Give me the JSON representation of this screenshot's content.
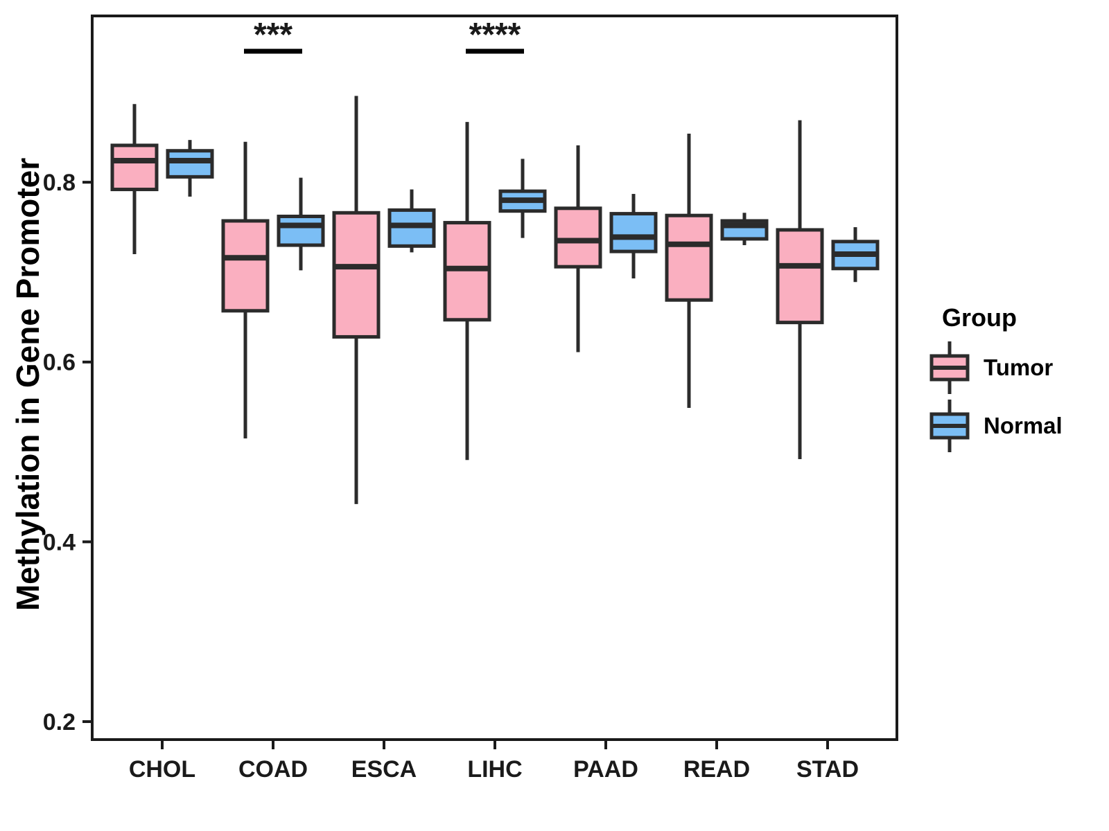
{
  "legend": {
    "title": "Group",
    "items": [
      {
        "label": "Tumor",
        "color": "#FAAFC0"
      },
      {
        "label": "Normal",
        "color": "#7BBEF5"
      }
    ]
  },
  "colors": {
    "tumor_fill": "#FAAFC0",
    "normal_fill": "#7BBEF5",
    "box_stroke": "#2b2b2b",
    "panel_border": "#1a1a1a",
    "tick_text": "#333333"
  },
  "chart_data": {
    "type": "boxplot",
    "title": "",
    "xlabel": "",
    "ylabel": "Methylation in Gene Promoter",
    "categories": [
      "CHOL",
      "COAD",
      "ESCA",
      "LIHC",
      "PAAD",
      "READ",
      "STAD"
    ],
    "groups": [
      "Tumor",
      "Normal"
    ],
    "ylim": [
      0.18,
      0.985
    ],
    "yticks": [
      {
        "label": "0.2",
        "value": 0.2
      },
      {
        "label": "0.4",
        "value": 0.4
      },
      {
        "label": "0.6",
        "value": 0.6
      },
      {
        "label": "0.8",
        "value": 0.8
      }
    ],
    "grid": false,
    "legend_position": "right",
    "series": [
      {
        "name": "Tumor",
        "color": "#FAAFC0",
        "boxes": [
          {
            "category": "CHOL",
            "whislo": 0.72,
            "q1": 0.792,
            "med": 0.824,
            "q3": 0.841,
            "whishi": 0.887
          },
          {
            "category": "COAD",
            "whislo": 0.515,
            "q1": 0.657,
            "med": 0.716,
            "q3": 0.757,
            "whishi": 0.845
          },
          {
            "category": "ESCA",
            "whislo": 0.442,
            "q1": 0.628,
            "med": 0.706,
            "q3": 0.766,
            "whishi": 0.896
          },
          {
            "category": "LIHC",
            "whislo": 0.491,
            "q1": 0.647,
            "med": 0.704,
            "q3": 0.755,
            "whishi": 0.867
          },
          {
            "category": "PAAD",
            "whislo": 0.611,
            "q1": 0.706,
            "med": 0.735,
            "q3": 0.771,
            "whishi": 0.841
          },
          {
            "category": "READ",
            "whislo": 0.549,
            "q1": 0.669,
            "med": 0.731,
            "q3": 0.763,
            "whishi": 0.854
          },
          {
            "category": "STAD",
            "whislo": 0.492,
            "q1": 0.644,
            "med": 0.707,
            "q3": 0.747,
            "whishi": 0.869
          }
        ]
      },
      {
        "name": "Normal",
        "color": "#7BBEF5",
        "boxes": [
          {
            "category": "CHOL",
            "whislo": 0.784,
            "q1": 0.806,
            "med": 0.824,
            "q3": 0.835,
            "whishi": 0.847
          },
          {
            "category": "COAD",
            "whislo": 0.702,
            "q1": 0.73,
            "med": 0.752,
            "q3": 0.762,
            "whishi": 0.805
          },
          {
            "category": "ESCA",
            "whislo": 0.722,
            "q1": 0.729,
            "med": 0.752,
            "q3": 0.769,
            "whishi": 0.792
          },
          {
            "category": "LIHC",
            "whislo": 0.738,
            "q1": 0.768,
            "med": 0.78,
            "q3": 0.79,
            "whishi": 0.826
          },
          {
            "category": "PAAD",
            "whislo": 0.693,
            "q1": 0.723,
            "med": 0.739,
            "q3": 0.765,
            "whishi": 0.787
          },
          {
            "category": "READ",
            "whislo": 0.73,
            "q1": 0.737,
            "med": 0.752,
            "q3": 0.757,
            "whishi": 0.766
          },
          {
            "category": "STAD",
            "whislo": 0.689,
            "q1": 0.704,
            "med": 0.72,
            "q3": 0.734,
            "whishi": 0.75
          }
        ]
      }
    ],
    "annotations": [
      {
        "category": "COAD",
        "label": "***"
      },
      {
        "category": "LIHC",
        "label": "****"
      }
    ]
  }
}
